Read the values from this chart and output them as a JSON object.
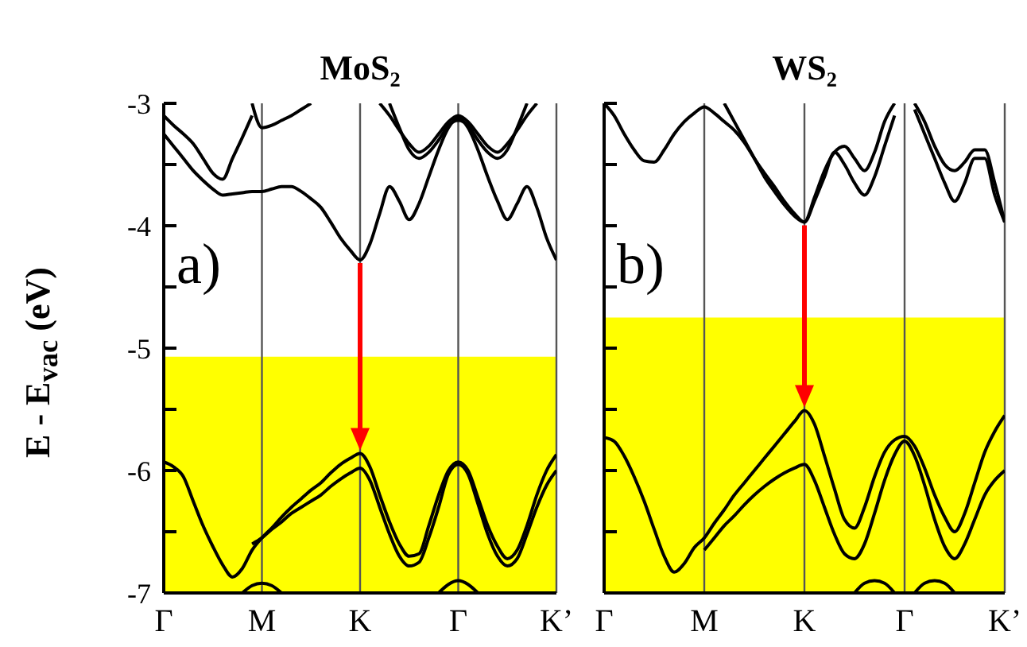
{
  "chart_data": [
    {
      "type": "line",
      "title": "MoS₂",
      "ylabel": "E - E$_{vac}$ (eV)",
      "annotations": [
        "a)"
      ],
      "marker": "none",
      "line_style": "solid",
      "grid": "x",
      "categories": [
        "Γ",
        null,
        null,
        null,
        null,
        null,
        null,
        null,
        null,
        null,
        "M",
        null,
        null,
        null,
        null,
        null,
        null,
        null,
        null,
        null,
        "K",
        null,
        null,
        null,
        null,
        null,
        null,
        null,
        null,
        null,
        "Γ",
        null,
        null,
        null,
        null,
        null,
        null,
        null,
        null,
        null,
        "K’"
      ],
      "ylim": [
        -7,
        -3
      ],
      "yticks": [
        -7,
        {
          "value": -6.5,
          "label": null
        },
        -6,
        {
          "value": -5.5,
          "label": null
        },
        -5,
        {
          "value": -4.5,
          "label": null
        },
        -4,
        {
          "value": -3.5,
          "label": null
        },
        -3
      ],
      "bands": [
        {
          "axis": "y",
          "from": -7,
          "to": -5.07,
          "color": "#ffff00"
        }
      ],
      "series": [
        {
          "color": "#000000",
          "values": [
            -3.25,
            -3.35,
            -3.45,
            -3.55,
            -3.63,
            -3.7,
            -3.75,
            -3.74,
            -3.73,
            -3.72,
            -3.72,
            -3.7,
            -3.68,
            -3.68,
            -3.72,
            -3.78,
            -3.85,
            -3.97,
            -4.1,
            -4.2,
            -4.28,
            -4.15,
            -3.9,
            -3.68,
            -3.8,
            -3.95,
            -3.82,
            -3.6,
            -3.38,
            -3.2,
            -3.12,
            -3.2,
            -3.38,
            -3.6,
            -3.8,
            -3.95,
            -3.82,
            -3.68,
            -3.85,
            -4.1,
            -4.28
          ]
        },
        {
          "color": "#000000",
          "values": [
            -3.1,
            -3.18,
            -3.25,
            -3.33,
            -3.45,
            -3.57,
            -3.62,
            -3.45,
            -3.28,
            -3.1,
            null,
            null,
            null,
            null,
            null,
            null,
            null,
            null,
            null,
            null,
            null,
            null,
            null,
            null,
            null,
            null,
            null,
            null,
            null,
            null,
            null,
            null,
            null,
            null,
            null,
            null,
            null,
            null,
            null,
            null,
            null
          ]
        },
        {
          "color": "#000000",
          "values": [
            null,
            null,
            null,
            null,
            null,
            null,
            null,
            null,
            null,
            -3.0,
            -3.2,
            -3.18,
            -3.14,
            -3.1,
            -3.05,
            -3.0,
            null,
            null,
            null,
            null,
            null,
            null,
            null,
            null,
            null,
            null,
            null,
            null,
            null,
            null,
            null,
            null,
            null,
            null,
            null,
            null,
            null,
            null,
            null,
            null,
            null
          ]
        },
        {
          "color": "#000000",
          "values": [
            null,
            null,
            null,
            null,
            null,
            null,
            null,
            null,
            null,
            null,
            null,
            null,
            null,
            null,
            null,
            null,
            null,
            null,
            null,
            null,
            null,
            null,
            -3.0,
            -3.1,
            -3.22,
            -3.33,
            -3.4,
            -3.35,
            -3.25,
            -3.15,
            -3.1,
            -3.15,
            -3.25,
            -3.35,
            -3.4,
            -3.33,
            -3.22,
            -3.1,
            -3.0,
            null,
            null
          ]
        },
        {
          "color": "#000000",
          "values": [
            null,
            null,
            null,
            null,
            null,
            null,
            null,
            null,
            null,
            null,
            null,
            null,
            null,
            null,
            null,
            null,
            null,
            null,
            null,
            null,
            null,
            null,
            null,
            -3.0,
            -3.2,
            -3.38,
            -3.45,
            -3.4,
            -3.3,
            -3.18,
            -3.14,
            -3.18,
            -3.3,
            -3.4,
            -3.45,
            -3.38,
            -3.2,
            -3.0,
            null,
            null,
            null
          ]
        },
        {
          "color": "#000000",
          "values": [
            -5.93,
            -5.97,
            -6.05,
            -6.25,
            -6.45,
            -6.62,
            -6.77,
            -6.87,
            -6.8,
            -6.65,
            -6.55,
            -6.47,
            -6.38,
            -6.3,
            -6.23,
            -6.16,
            -6.1,
            -6.02,
            -5.95,
            -5.9,
            -5.86,
            -5.97,
            -6.2,
            -6.42,
            -6.6,
            -6.7,
            -6.68,
            -6.45,
            -6.2,
            -6.0,
            -5.93,
            -6.0,
            -6.22,
            -6.45,
            -6.62,
            -6.72,
            -6.65,
            -6.45,
            -6.2,
            -6.0,
            -5.87
          ]
        },
        {
          "color": "#000000",
          "values": [
            null,
            null,
            null,
            null,
            null,
            null,
            null,
            null,
            null,
            -6.6,
            -6.55,
            -6.48,
            -6.42,
            -6.35,
            -6.3,
            -6.25,
            -6.2,
            -6.13,
            -6.07,
            -6.02,
            -5.98,
            -6.08,
            -6.3,
            -6.52,
            -6.7,
            -6.78,
            -6.75,
            -6.55,
            -6.3,
            -6.03,
            -5.95,
            -6.03,
            -6.27,
            -6.52,
            -6.7,
            -6.78,
            -6.72,
            -6.52,
            -6.3,
            -6.12,
            -6.0
          ]
        },
        {
          "color": "#000000",
          "values": [
            null,
            null,
            null,
            null,
            null,
            null,
            null,
            null,
            -7.0,
            -6.94,
            -6.92,
            -6.94,
            -7.0,
            null,
            null,
            null,
            null,
            null,
            null,
            null,
            null,
            null,
            null,
            null,
            null,
            null,
            null,
            null,
            -7.0,
            -6.93,
            -6.9,
            -6.93,
            -7.0,
            null,
            null,
            null,
            null,
            null,
            null,
            null,
            null
          ]
        }
      ]
    },
    {
      "type": "line",
      "title": "WS₂",
      "annotations": [
        "b)"
      ],
      "marker": "none",
      "line_style": "solid",
      "grid": "x",
      "tick_labels": "x",
      "categories": [
        "Γ",
        null,
        null,
        null,
        null,
        null,
        null,
        null,
        null,
        null,
        "M",
        null,
        null,
        null,
        null,
        null,
        null,
        null,
        null,
        null,
        "K",
        null,
        null,
        null,
        null,
        null,
        null,
        null,
        null,
        null,
        "Γ",
        null,
        null,
        null,
        null,
        null,
        null,
        null,
        null,
        null,
        "K’"
      ],
      "ylim": [
        -7,
        -3
      ],
      "yticks": [
        -7,
        {
          "value": -6.5,
          "label": null
        },
        -6,
        {
          "value": -5.5,
          "label": null
        },
        -5,
        {
          "value": -4.5,
          "label": null
        },
        -4,
        {
          "value": -3.5,
          "label": null
        },
        -3
      ],
      "bands": [
        {
          "axis": "y",
          "from": -7,
          "to": -4.75,
          "color": "#ffff00"
        }
      ],
      "series": [
        {
          "color": "#000000",
          "values": [
            -3.0,
            -3.1,
            -3.25,
            -3.38,
            -3.47,
            -3.48,
            -3.38,
            -3.25,
            -3.15,
            -3.08,
            -3.03,
            -3.08,
            -3.15,
            -3.22,
            -3.32,
            -3.45,
            -3.57,
            -3.68,
            -3.8,
            -3.9,
            -3.97,
            -3.77,
            -3.55,
            -3.4,
            -3.35,
            -3.45,
            -3.55,
            -3.4,
            -3.15,
            -3.0,
            null,
            null,
            null,
            null,
            null,
            null,
            null,
            null,
            null,
            null,
            null
          ]
        },
        {
          "color": "#000000",
          "values": [
            null,
            null,
            null,
            null,
            null,
            null,
            null,
            null,
            null,
            null,
            null,
            null,
            -3.0,
            -3.15,
            -3.3,
            -3.45,
            -3.6,
            -3.72,
            -3.83,
            -3.92,
            -3.97,
            -3.8,
            -3.6,
            -3.4,
            -3.5,
            -3.65,
            -3.75,
            -3.6,
            -3.35,
            -3.1,
            null,
            null,
            null,
            null,
            null,
            null,
            null,
            null,
            null,
            null,
            null
          ]
        },
        {
          "color": "#000000",
          "values": [
            null,
            null,
            null,
            null,
            null,
            null,
            null,
            null,
            null,
            null,
            null,
            null,
            null,
            null,
            null,
            null,
            null,
            null,
            null,
            null,
            null,
            null,
            null,
            null,
            null,
            null,
            null,
            null,
            null,
            null,
            null,
            -3.05,
            -3.25,
            -3.45,
            -3.65,
            -3.8,
            -3.65,
            -3.45,
            -3.45,
            -3.75,
            -3.97
          ]
        },
        {
          "color": "#000000",
          "values": [
            null,
            null,
            null,
            null,
            null,
            null,
            null,
            null,
            null,
            null,
            null,
            null,
            null,
            null,
            null,
            null,
            null,
            null,
            null,
            null,
            null,
            null,
            null,
            null,
            null,
            null,
            null,
            null,
            null,
            null,
            null,
            -3.0,
            -3.15,
            -3.35,
            -3.5,
            -3.55,
            -3.48,
            -3.38,
            -3.38,
            -3.65,
            -3.97
          ]
        },
        {
          "color": "#000000",
          "values": [
            -5.73,
            -5.76,
            -5.88,
            -6.05,
            -6.25,
            -6.48,
            -6.7,
            -6.83,
            -6.76,
            -6.63,
            -6.55,
            -6.43,
            -6.32,
            -6.2,
            -6.1,
            -6.0,
            -5.9,
            -5.8,
            -5.7,
            -5.6,
            -5.51,
            -5.62,
            -5.88,
            -6.15,
            -6.4,
            -6.47,
            -6.3,
            -6.05,
            -5.85,
            -5.75,
            -5.72,
            -5.8,
            -5.98,
            -6.2,
            -6.38,
            -6.5,
            -6.35,
            -6.1,
            -5.85,
            -5.68,
            -5.55
          ]
        },
        {
          "color": "#000000",
          "values": [
            null,
            null,
            null,
            null,
            null,
            null,
            null,
            null,
            null,
            null,
            -6.65,
            -6.55,
            -6.45,
            -6.37,
            -6.28,
            -6.2,
            -6.13,
            -6.07,
            -6.02,
            -5.98,
            -5.95,
            -6.08,
            -6.3,
            -6.52,
            -6.68,
            -6.72,
            -6.6,
            -6.35,
            -6.08,
            -5.87,
            -5.76,
            -5.88,
            -6.12,
            -6.4,
            -6.62,
            -6.72,
            -6.6,
            -6.4,
            -6.2,
            -6.08,
            -6.0
          ]
        },
        {
          "color": "#000000",
          "values": [
            null,
            null,
            null,
            null,
            null,
            null,
            null,
            null,
            null,
            null,
            null,
            null,
            null,
            null,
            null,
            null,
            null,
            null,
            null,
            null,
            null,
            null,
            null,
            null,
            null,
            -7.0,
            -6.92,
            -6.9,
            -6.92,
            -7.0,
            null,
            -7.0,
            -6.92,
            -6.9,
            -6.92,
            -7.0,
            null,
            null,
            null,
            null,
            null
          ]
        }
      ]
    }
  ]
}
